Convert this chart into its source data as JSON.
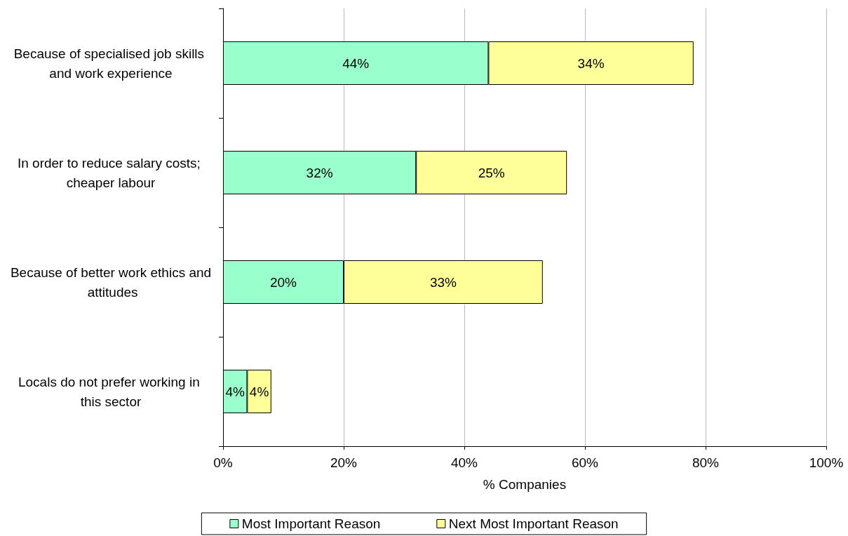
{
  "chart_data": {
    "type": "bar",
    "orientation": "horizontal",
    "stacked": true,
    "categories": [
      "Because of specialised job skills and work experience",
      "In order to reduce salary costs; cheaper labour",
      "Because of better work ethics and attitudes",
      "Locals do not prefer working in this sector"
    ],
    "series": [
      {
        "name": "Most Important Reason",
        "color": "#99ffcc",
        "values": [
          44,
          32,
          20,
          4
        ],
        "value_labels": [
          "44%",
          "32%",
          "20%",
          "4%"
        ]
      },
      {
        "name": "Next Most Important Reason",
        "color": "#ffff99",
        "values": [
          34,
          25,
          33,
          4
        ],
        "value_labels": [
          "34%",
          "25%",
          "33%",
          "4%"
        ]
      }
    ],
    "xlabel": "% Companies",
    "xlim": [
      0,
      100
    ],
    "xticks": [
      {
        "value": 0,
        "label": "0%"
      },
      {
        "value": 20,
        "label": "20%"
      },
      {
        "value": 40,
        "label": "40%"
      },
      {
        "value": 60,
        "label": "60%"
      },
      {
        "value": 80,
        "label": "80%"
      },
      {
        "value": 100,
        "label": "100%"
      }
    ],
    "grid": "x",
    "legend": "bottom"
  }
}
